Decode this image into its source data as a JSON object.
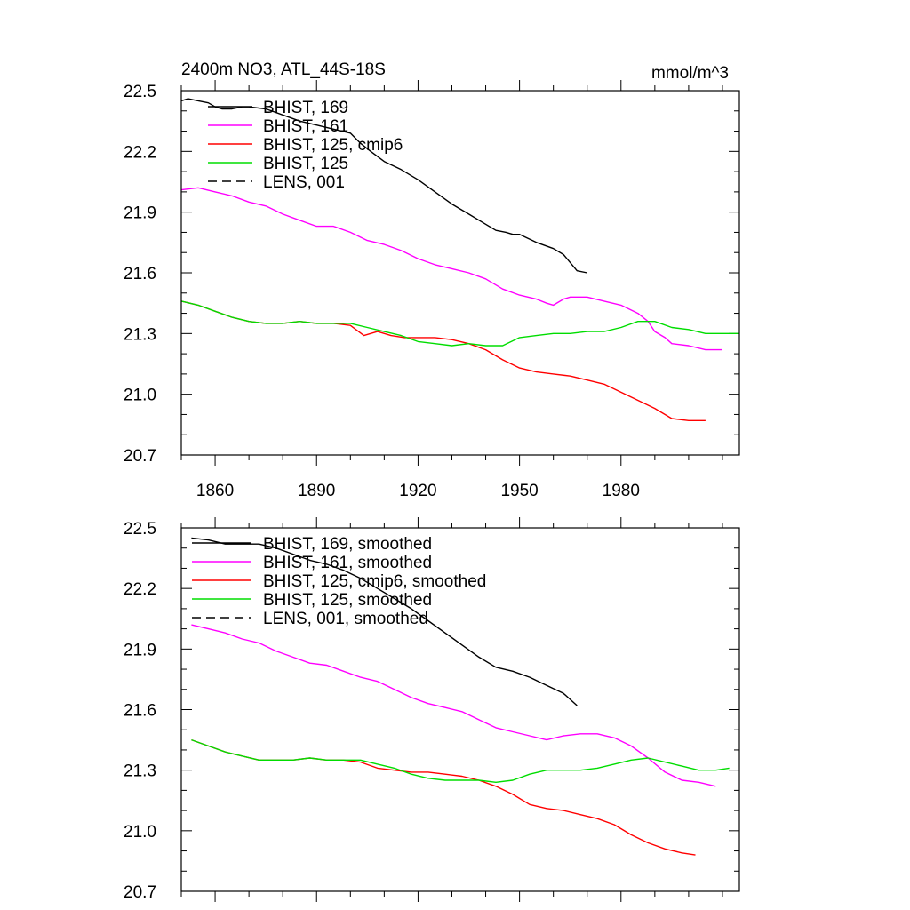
{
  "chart_data": [
    {
      "type": "line",
      "title": "2400m NO3, ATL_44S-18S",
      "units": "mmol/m^3",
      "xlim": [
        1850,
        2015
      ],
      "ylim": [
        20.7,
        22.5
      ],
      "yticks": [
        "22.5",
        "22.2",
        "21.9",
        "21.6",
        "21.3",
        "21.0",
        "20.7"
      ],
      "ytick_values": [
        22.5,
        22.2,
        21.9,
        21.6,
        21.3,
        21.0,
        20.7
      ],
      "xticks": [
        "1860",
        "1890",
        "1920",
        "1950",
        "1980"
      ],
      "xtick_values": [
        1860,
        1890,
        1920,
        1950,
        1980
      ],
      "show_xtick_labels": true,
      "legend_position": "top-left",
      "legend": [
        "BHIST, 169",
        "BHIST, 161",
        "BHIST, 125, cmip6",
        "BHIST, 125",
        "LENS, 001"
      ],
      "series": [
        {
          "name": "BHIST, 169",
          "color": "#000000",
          "dash": "",
          "x": [
            1850,
            1852,
            1855,
            1858,
            1860,
            1862,
            1865,
            1868,
            1870,
            1875,
            1880,
            1885,
            1890,
            1895,
            1900,
            1903,
            1906,
            1910,
            1915,
            1918,
            1920,
            1925,
            1930,
            1935,
            1940,
            1943,
            1946,
            1948,
            1950,
            1955,
            1960,
            1963,
            1965,
            1967,
            1970
          ],
          "y": [
            22.45,
            22.46,
            22.45,
            22.44,
            22.42,
            22.41,
            22.41,
            22.42,
            22.42,
            22.41,
            22.38,
            22.35,
            22.33,
            22.31,
            22.29,
            22.24,
            22.2,
            22.15,
            22.11,
            22.08,
            22.06,
            22.0,
            21.94,
            21.89,
            21.84,
            21.81,
            21.8,
            21.79,
            21.79,
            21.75,
            21.72,
            21.69,
            21.65,
            21.61,
            21.6
          ]
        },
        {
          "name": "BHIST, 161",
          "color": "#ff00ff",
          "dash": "",
          "x": [
            1850,
            1855,
            1860,
            1865,
            1870,
            1875,
            1880,
            1885,
            1890,
            1895,
            1900,
            1905,
            1910,
            1915,
            1920,
            1925,
            1930,
            1935,
            1940,
            1945,
            1950,
            1955,
            1958,
            1960,
            1963,
            1965,
            1970,
            1975,
            1980,
            1985,
            1988,
            1990,
            1993,
            1995,
            2000,
            2005,
            2010
          ],
          "y": [
            22.01,
            22.02,
            22.0,
            21.98,
            21.95,
            21.93,
            21.89,
            21.86,
            21.83,
            21.83,
            21.8,
            21.76,
            21.74,
            21.71,
            21.67,
            21.64,
            21.62,
            21.6,
            21.57,
            21.52,
            21.49,
            21.47,
            21.45,
            21.44,
            21.47,
            21.48,
            21.48,
            21.46,
            21.44,
            21.4,
            21.36,
            21.31,
            21.28,
            21.25,
            21.24,
            21.22,
            21.22
          ]
        },
        {
          "name": "BHIST, 125, cmip6",
          "color": "#ff0000",
          "dash": "",
          "x": [
            1850,
            1855,
            1860,
            1865,
            1870,
            1875,
            1880,
            1885,
            1890,
            1895,
            1900,
            1904,
            1908,
            1912,
            1916,
            1920,
            1925,
            1930,
            1935,
            1940,
            1945,
            1950,
            1955,
            1960,
            1965,
            1970,
            1975,
            1980,
            1985,
            1990,
            1995,
            2000,
            2005
          ],
          "y": [
            21.46,
            21.44,
            21.41,
            21.38,
            21.36,
            21.35,
            21.35,
            21.36,
            21.35,
            21.35,
            21.34,
            21.29,
            21.31,
            21.29,
            21.28,
            21.28,
            21.28,
            21.27,
            21.25,
            21.22,
            21.17,
            21.13,
            21.11,
            21.1,
            21.09,
            21.07,
            21.05,
            21.01,
            20.97,
            20.93,
            20.88,
            20.87,
            20.87
          ]
        },
        {
          "name": "BHIST, 125",
          "color": "#00dd00",
          "dash": "",
          "x": [
            1850,
            1855,
            1860,
            1865,
            1870,
            1875,
            1880,
            1885,
            1890,
            1895,
            1900,
            1905,
            1910,
            1915,
            1920,
            1925,
            1930,
            1935,
            1940,
            1945,
            1950,
            1955,
            1960,
            1965,
            1970,
            1975,
            1980,
            1985,
            1990,
            1995,
            2000,
            2005,
            2010,
            2015
          ],
          "y": [
            21.46,
            21.44,
            21.41,
            21.38,
            21.36,
            21.35,
            21.35,
            21.36,
            21.35,
            21.35,
            21.35,
            21.33,
            21.31,
            21.29,
            21.26,
            21.25,
            21.24,
            21.25,
            21.24,
            21.24,
            21.28,
            21.29,
            21.3,
            21.3,
            21.31,
            21.31,
            21.33,
            21.36,
            21.36,
            21.33,
            21.32,
            21.3,
            21.3,
            21.3
          ]
        },
        {
          "name": "LENS, 001",
          "color": "#000000",
          "dash": "10 6",
          "x": [],
          "y": []
        }
      ]
    },
    {
      "type": "line",
      "title": "",
      "units": "",
      "xlim": [
        1850,
        2015
      ],
      "ylim": [
        20.7,
        22.5
      ],
      "yticks": [
        "22.5",
        "22.2",
        "21.9",
        "21.6",
        "21.3",
        "21.0",
        "20.7"
      ],
      "ytick_values": [
        22.5,
        22.2,
        21.9,
        21.6,
        21.3,
        21.0,
        20.7
      ],
      "xticks": [],
      "xtick_values": [
        1860,
        1890,
        1920,
        1950,
        1980
      ],
      "show_xtick_labels": false,
      "legend_position": "top-left",
      "legend": [
        "BHIST, 169, smoothed",
        "BHIST, 161, smoothed",
        "BHIST, 125, cmip6, smoothed",
        "BHIST, 125, smoothed",
        "LENS, 001, smoothed"
      ],
      "series": [
        {
          "name": "BHIST, 169, smoothed",
          "color": "#000000",
          "dash": "",
          "x": [
            1853,
            1858,
            1863,
            1868,
            1873,
            1878,
            1883,
            1888,
            1893,
            1898,
            1903,
            1908,
            1913,
            1918,
            1923,
            1928,
            1933,
            1938,
            1943,
            1948,
            1953,
            1958,
            1963,
            1967
          ],
          "y": [
            22.45,
            22.44,
            22.42,
            22.42,
            22.42,
            22.4,
            22.37,
            22.34,
            22.32,
            22.29,
            22.25,
            22.2,
            22.15,
            22.1,
            22.04,
            21.98,
            21.92,
            21.86,
            21.81,
            21.79,
            21.76,
            21.72,
            21.68,
            21.62
          ]
        },
        {
          "name": "BHIST, 161, smoothed",
          "color": "#ff00ff",
          "dash": "",
          "x": [
            1853,
            1858,
            1863,
            1868,
            1873,
            1878,
            1883,
            1888,
            1893,
            1898,
            1903,
            1908,
            1913,
            1918,
            1923,
            1928,
            1933,
            1938,
            1943,
            1948,
            1953,
            1958,
            1963,
            1968,
            1973,
            1978,
            1983,
            1988,
            1993,
            1998,
            2003,
            2008
          ],
          "y": [
            22.02,
            22.0,
            21.98,
            21.95,
            21.93,
            21.89,
            21.86,
            21.83,
            21.82,
            21.79,
            21.76,
            21.74,
            21.7,
            21.66,
            21.63,
            21.61,
            21.59,
            21.55,
            21.51,
            21.49,
            21.47,
            21.45,
            21.47,
            21.48,
            21.48,
            21.46,
            21.42,
            21.36,
            21.29,
            21.25,
            21.24,
            21.22
          ]
        },
        {
          "name": "BHIST, 125, cmip6, smoothed",
          "color": "#ff0000",
          "dash": "",
          "x": [
            1853,
            1858,
            1863,
            1868,
            1873,
            1878,
            1883,
            1888,
            1893,
            1898,
            1903,
            1908,
            1913,
            1918,
            1923,
            1928,
            1933,
            1938,
            1943,
            1948,
            1953,
            1958,
            1963,
            1968,
            1973,
            1978,
            1983,
            1988,
            1993,
            1998,
            2002
          ],
          "y": [
            21.45,
            21.42,
            21.39,
            21.37,
            21.35,
            21.35,
            21.35,
            21.36,
            21.35,
            21.35,
            21.34,
            21.31,
            21.3,
            21.29,
            21.29,
            21.28,
            21.27,
            21.25,
            21.22,
            21.18,
            21.13,
            21.11,
            21.1,
            21.08,
            21.06,
            21.03,
            20.98,
            20.94,
            20.91,
            20.89,
            20.88
          ]
        },
        {
          "name": "BHIST, 125, smoothed",
          "color": "#00dd00",
          "dash": "",
          "x": [
            1853,
            1858,
            1863,
            1868,
            1873,
            1878,
            1883,
            1888,
            1893,
            1898,
            1903,
            1908,
            1913,
            1918,
            1923,
            1928,
            1933,
            1938,
            1943,
            1948,
            1953,
            1958,
            1963,
            1968,
            1973,
            1978,
            1983,
            1988,
            1993,
            1998,
            2003,
            2008,
            2012
          ],
          "y": [
            21.45,
            21.42,
            21.39,
            21.37,
            21.35,
            21.35,
            21.35,
            21.36,
            21.35,
            21.35,
            21.35,
            21.33,
            21.31,
            21.28,
            21.26,
            21.25,
            21.25,
            21.25,
            21.24,
            21.25,
            21.28,
            21.3,
            21.3,
            21.3,
            21.31,
            21.33,
            21.35,
            21.36,
            21.34,
            21.32,
            21.3,
            21.3,
            21.31
          ]
        },
        {
          "name": "LENS, 001, smoothed",
          "color": "#000000",
          "dash": "10 6",
          "x": [],
          "y": []
        }
      ]
    }
  ]
}
